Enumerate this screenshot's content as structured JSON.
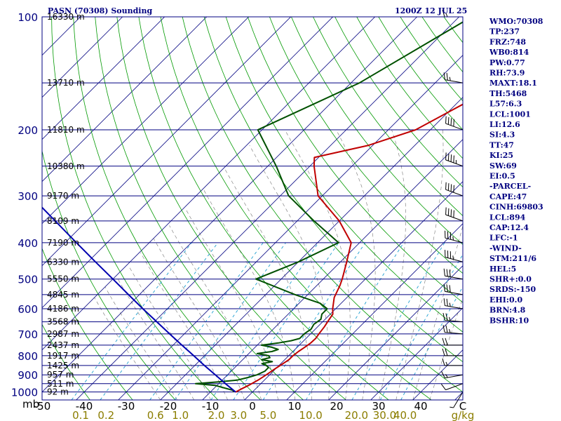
{
  "header": {
    "station": "PASN (70308) Sounding",
    "time": "1200Z 12 JUL 25"
  },
  "colors": {
    "isobar": "#000080",
    "isotherm": "#000080",
    "dry_adiabat": "#009900",
    "moist_adiabat": "#000000",
    "mixing_ratio": "#1e9fd0",
    "temperature": "#c00000",
    "dewpoint": "#005000",
    "parcel": "#0000b0"
  },
  "indices": [
    "WMO:70308",
    "TP:237",
    "FRZ:748",
    "WB0:814",
    "PW:0.77",
    "RH:73.9",
    "MAXT:18.1",
    "TH:5468",
    "L57:6.3",
    "LCL:1001",
    "LI:12.6",
    "SI:4.3",
    "TT:47",
    "KI:25",
    "SW:69",
    "EI:0.5",
    "-PARCEL-",
    "CAPE:47",
    "CINH:69803",
    "LCL:894",
    "CAP:12.4",
    "LFC:-1",
    "-WIND-",
    "STM:211/6",
    "HEL:5",
    "SHR+:0.0",
    "SRDS:-150",
    "EHI:0.0",
    "BRN:4.8",
    "BSHR:10"
  ],
  "chart_data": {
    "type": "line",
    "title": "PASN (70308) Sounding",
    "subtitle": "1200Z 12 JUL 25",
    "xlabel": "",
    "ylabel": "mb",
    "pressure_ticks": [
      "100",
      "200",
      "300",
      "400",
      "500",
      "600",
      "700",
      "800",
      "900",
      "1000"
    ],
    "pressure_tick_values": [
      100,
      200,
      300,
      400,
      500,
      600,
      700,
      800,
      900,
      1000
    ],
    "temperature_ticks": [
      "-50",
      "-40",
      "-30",
      "-20",
      "-10",
      "0",
      "10",
      "20",
      "30",
      "40",
      "C"
    ],
    "temperature_tick_values": [
      -50,
      -40,
      -30,
      -20,
      -10,
      0,
      10,
      20,
      30,
      40
    ],
    "xlim": [
      -50,
      50
    ],
    "plim": [
      1000,
      100
    ],
    "mixing_ratio_labels": [
      "0.1",
      "0.2",
      "0.6",
      "1.0",
      "2.0",
      "3.0",
      "5.0",
      "10.0",
      "20.0",
      "30.0",
      "40.0",
      "g/kg"
    ],
    "mixing_ratio_values": [
      0.1,
      0.2,
      0.6,
      1.0,
      2.0,
      3.0,
      5.0,
      10.0,
      20.0,
      30.0,
      40.0
    ],
    "heights": [
      {
        "p": 100,
        "label": "16330 m"
      },
      {
        "p": 150,
        "label": "13710 m"
      },
      {
        "p": 200,
        "label": "11810 m"
      },
      {
        "p": 250,
        "label": "10380 m"
      },
      {
        "p": 300,
        "label": "9170 m"
      },
      {
        "p": 350,
        "label": "8109 m"
      },
      {
        "p": 400,
        "label": "7190 m"
      },
      {
        "p": 450,
        "label": "6330 m"
      },
      {
        "p": 500,
        "label": "5550 m"
      },
      {
        "p": 550,
        "label": "4845 m"
      },
      {
        "p": 600,
        "label": "4186 m"
      },
      {
        "p": 650,
        "label": "3568 m"
      },
      {
        "p": 700,
        "label": "2987 m"
      },
      {
        "p": 750,
        "label": "2437 m"
      },
      {
        "p": 800,
        "label": "1917 m"
      },
      {
        "p": 850,
        "label": "1425 m"
      },
      {
        "p": 900,
        "label": "957 m"
      },
      {
        "p": 950,
        "label": "511 m"
      },
      {
        "p": 1000,
        "label": "92 m"
      }
    ],
    "series": [
      {
        "key": "temperature",
        "points": [
          [
            1000,
            -4.0
          ],
          [
            985,
            -3.5
          ],
          [
            960,
            -2.5
          ],
          [
            930,
            -1.5
          ],
          [
            900,
            -0.8
          ],
          [
            870,
            -0.2
          ],
          [
            850,
            0.3
          ],
          [
            820,
            1.0
          ],
          [
            800,
            1.0
          ],
          [
            780,
            1.3
          ],
          [
            760,
            1.8
          ],
          [
            740,
            2.2
          ],
          [
            720,
            2.3
          ],
          [
            700,
            2.0
          ],
          [
            670,
            1.6
          ],
          [
            650,
            1.2
          ],
          [
            620,
            0.6
          ],
          [
            600,
            -0.7
          ],
          [
            560,
            -3.0
          ],
          [
            520,
            -4.5
          ],
          [
            500,
            -5.5
          ],
          [
            450,
            -8.5
          ],
          [
            400,
            -12.0
          ],
          [
            350,
            -20.0
          ],
          [
            300,
            -31.0
          ],
          [
            250,
            -39.0
          ],
          [
            237,
            -41.0
          ],
          [
            220,
            -31.0
          ],
          [
            200,
            -23.5
          ],
          [
            150,
            -14.0
          ],
          [
            100,
            -9.0
          ]
        ]
      },
      {
        "key": "dewpoint",
        "points": [
          [
            1000,
            -4.5
          ],
          [
            990,
            -5.0
          ],
          [
            980,
            -6.8
          ],
          [
            960,
            -10.5
          ],
          [
            950,
            -15.5
          ],
          [
            940,
            -10.5
          ],
          [
            930,
            -6.5
          ],
          [
            915,
            -4.5
          ],
          [
            900,
            -3.0
          ],
          [
            880,
            -2.0
          ],
          [
            860,
            -2.0
          ],
          [
            850,
            -3.0
          ],
          [
            840,
            -4.5
          ],
          [
            830,
            -2.5
          ],
          [
            820,
            -5.5
          ],
          [
            810,
            -4.0
          ],
          [
            800,
            -4.8
          ],
          [
            790,
            -8.0
          ],
          [
            780,
            -5.0
          ],
          [
            770,
            -4.0
          ],
          [
            760,
            -6.0
          ],
          [
            750,
            -9.0
          ],
          [
            740,
            -5.5
          ],
          [
            730,
            -3.0
          ],
          [
            720,
            -1.5
          ],
          [
            700,
            -1.5
          ],
          [
            680,
            -1.0
          ],
          [
            660,
            -1.5
          ],
          [
            640,
            -1.0
          ],
          [
            620,
            -2.0
          ],
          [
            600,
            -2.0
          ],
          [
            580,
            -5.0
          ],
          [
            550,
            -13.0
          ],
          [
            500,
            -26.0
          ],
          [
            450,
            -20.0
          ],
          [
            400,
            -15.0
          ],
          [
            350,
            -26.0
          ],
          [
            300,
            -38.0
          ],
          [
            250,
            -48.0
          ],
          [
            200,
            -61.0
          ],
          [
            150,
            -48.0
          ],
          [
            100,
            -37.0
          ]
        ]
      },
      {
        "key": "parcel",
        "points": [
          [
            1000,
            -4.0
          ],
          [
            950,
            -8.4
          ],
          [
            900,
            -12.9
          ],
          [
            850,
            -17.7
          ],
          [
            800,
            -22.6
          ],
          [
            750,
            -27.9
          ],
          [
            700,
            -33.5
          ],
          [
            650,
            -39.4
          ],
          [
            600,
            -45.8
          ],
          [
            550,
            -52.6
          ],
          [
            500,
            -60.0
          ],
          [
            450,
            -68.2
          ],
          [
            400,
            -77.3
          ],
          [
            350,
            -87.5
          ],
          [
            300,
            -99.3
          ],
          [
            250,
            -113.3
          ],
          [
            200,
            -130.5
          ],
          [
            150,
            -152.9
          ],
          [
            100,
            -185.5
          ]
        ]
      }
    ],
    "wind_barbs": [
      {
        "p": 1000,
        "dir": 211,
        "spd": 6
      },
      {
        "p": 950,
        "dir": 250,
        "spd": 10
      },
      {
        "p": 900,
        "dir": 260,
        "spd": 15
      },
      {
        "p": 850,
        "dir": 270,
        "spd": 15
      },
      {
        "p": 800,
        "dir": 270,
        "spd": 20
      },
      {
        "p": 750,
        "dir": 270,
        "spd": 20
      },
      {
        "p": 700,
        "dir": 275,
        "spd": 25
      },
      {
        "p": 650,
        "dir": 275,
        "spd": 25
      },
      {
        "p": 600,
        "dir": 280,
        "spd": 25
      },
      {
        "p": 550,
        "dir": 280,
        "spd": 30
      },
      {
        "p": 500,
        "dir": 280,
        "spd": 30
      },
      {
        "p": 450,
        "dir": 285,
        "spd": 35
      },
      {
        "p": 400,
        "dir": 285,
        "spd": 35
      },
      {
        "p": 350,
        "dir": 290,
        "spd": 40
      },
      {
        "p": 300,
        "dir": 290,
        "spd": 40
      },
      {
        "p": 250,
        "dir": 290,
        "spd": 45
      },
      {
        "p": 200,
        "dir": 290,
        "spd": 40
      },
      {
        "p": 150,
        "dir": 280,
        "spd": 25
      },
      {
        "p": 100,
        "dir": 270,
        "spd": 15
      }
    ],
    "grid": true,
    "legend": "none"
  }
}
